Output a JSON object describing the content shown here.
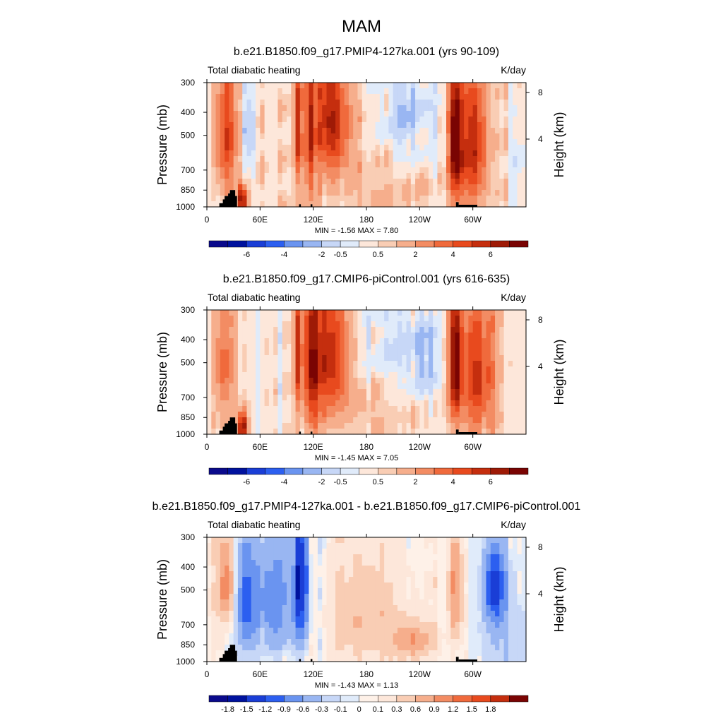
{
  "figure": {
    "title": "MAM"
  },
  "chart_data": [
    {
      "type": "heatmap",
      "title": "b.e21.B1850.f09_g17.PMIP4-127ka.001 (yrs 90-109)",
      "left_label": "Total diabatic heating",
      "right_label": "K/day",
      "ylabel": "Pressure (mb)",
      "ylabel_right": "Height (km)",
      "x_ticks": [
        "0",
        "60E",
        "120E",
        "180",
        "120W",
        "60W"
      ],
      "x_tick_values": [
        0,
        60,
        120,
        180,
        240,
        300
      ],
      "xlim": [
        0,
        360
      ],
      "y_ticks": [
        "300",
        "400",
        "500",
        "700",
        "850",
        "1000"
      ],
      "y_tick_values": [
        300,
        400,
        500,
        700,
        850,
        1000
      ],
      "ylim": [
        1000,
        300
      ],
      "height_ticks": [
        "8",
        "4"
      ],
      "height_tick_values": [
        8,
        4
      ],
      "stats": "MIN =  -1.56  MAX =  7.80",
      "colorbar_labels": [
        "-6",
        "-4",
        "-2",
        "-0.5",
        "0.5",
        "2",
        "4",
        "6"
      ],
      "features": [
        {
          "lon": 22,
          "p": 500,
          "value": 4.5,
          "sx": 9,
          "sy": 230
        },
        {
          "lon": 40,
          "p": 930,
          "value": 7.5,
          "sx": 4,
          "sy": 90
        },
        {
          "lon": 48,
          "p": 480,
          "value": -1.0,
          "sx": 5,
          "sy": 130
        },
        {
          "lon": 103,
          "p": 450,
          "value": 5.0,
          "sx": 3,
          "sy": 220
        },
        {
          "lon": 116,
          "p": 500,
          "value": 5.0,
          "sx": 3,
          "sy": 280
        },
        {
          "lon": 140,
          "p": 430,
          "value": 6.0,
          "sx": 15,
          "sy": 200
        },
        {
          "lon": 190,
          "p": 850,
          "value": 0.8,
          "sx": 55,
          "sy": 160
        },
        {
          "lon": 225,
          "p": 400,
          "value": -1.3,
          "sx": 22,
          "sy": 180
        },
        {
          "lon": 280,
          "p": 520,
          "value": 7.0,
          "sx": 5,
          "sy": 260
        },
        {
          "lon": 300,
          "p": 550,
          "value": 5.5,
          "sx": 12,
          "sy": 280
        },
        {
          "lon": 350,
          "p": 700,
          "value": -0.7,
          "sx": 6,
          "sy": 150
        }
      ],
      "values": [
        [
          0,
          0.4,
          0,
          0,
          1,
          1,
          0,
          0.6,
          -0.8,
          0.2,
          0,
          0.7,
          1.6,
          0.5,
          0.4,
          0,
          1.6,
          1,
          0.6,
          0.5,
          0.8,
          1.5,
          0.2,
          0.2,
          0.9,
          1.5,
          -0.4,
          0.2,
          0.4,
          0.3,
          -0.7,
          0.3,
          0.5,
          0.7,
          1.5,
          0.4,
          0.2,
          0.7,
          0.9,
          0.5,
          1.4,
          0.9,
          0.3,
          0.3,
          0.5,
          0.9,
          0.1,
          0.9,
          1,
          0.8,
          0.2,
          -0.3,
          0.8,
          0,
          1,
          0.6,
          0.7,
          1.1,
          0.6,
          0.3,
          0.7,
          -0.4,
          0.3,
          0,
          0.2,
          0.8,
          0.6,
          1.7,
          -0.1,
          0.3,
          0.7,
          0.5
        ]
      ]
    },
    {
      "type": "heatmap",
      "title": "b.e21.B1850.f09_g17.CMIP6-piControl.001 (yrs 616-635)",
      "left_label": "Total diabatic heating",
      "right_label": "K/day",
      "ylabel": "Pressure (mb)",
      "ylabel_right": "Height (km)",
      "x_ticks": [
        "0",
        "60E",
        "120E",
        "180",
        "120W",
        "60W"
      ],
      "x_tick_values": [
        0,
        60,
        120,
        180,
        240,
        300
      ],
      "xlim": [
        0,
        360
      ],
      "y_ticks": [
        "300",
        "400",
        "500",
        "700",
        "850",
        "1000"
      ],
      "y_tick_values": [
        300,
        400,
        500,
        700,
        850,
        1000
      ],
      "ylim": [
        1000,
        300
      ],
      "height_ticks": [
        "8",
        "4"
      ],
      "height_tick_values": [
        8,
        4
      ],
      "stats": "MIN =  -1.45  MAX =  7.05",
      "colorbar_labels": [
        "-6",
        "-4",
        "-2",
        "-0.5",
        "0.5",
        "2",
        "4",
        "6"
      ],
      "features": [
        {
          "lon": 20,
          "p": 500,
          "value": 3.0,
          "sx": 9,
          "sy": 230
        },
        {
          "lon": 40,
          "p": 930,
          "value": 7.0,
          "sx": 4,
          "sy": 90
        },
        {
          "lon": 103,
          "p": 450,
          "value": 5.0,
          "sx": 3,
          "sy": 220
        },
        {
          "lon": 118,
          "p": 500,
          "value": 5.5,
          "sx": 6,
          "sy": 280
        },
        {
          "lon": 140,
          "p": 470,
          "value": 5.5,
          "sx": 14,
          "sy": 230
        },
        {
          "lon": 200,
          "p": 420,
          "value": -0.8,
          "sx": 25,
          "sy": 200
        },
        {
          "lon": 245,
          "p": 480,
          "value": -1.4,
          "sx": 14,
          "sy": 160
        },
        {
          "lon": 180,
          "p": 780,
          "value": 0.8,
          "sx": 40,
          "sy": 150
        },
        {
          "lon": 280,
          "p": 480,
          "value": 7.0,
          "sx": 5,
          "sy": 260
        },
        {
          "lon": 305,
          "p": 570,
          "value": 5.0,
          "sx": 14,
          "sy": 280
        }
      ],
      "values": [
        [
          0,
          0.8,
          0.2,
          0.6,
          0.6,
          0.5,
          0.8,
          0,
          0.8,
          0.4,
          0.4,
          -0.4,
          0.1,
          0.6,
          0.4,
          1,
          -0.6,
          0.8,
          0.6,
          0.8,
          0.9,
          -0.2,
          0.5,
          0.5,
          1.3,
          0.5,
          1.4,
          0.3,
          0.1,
          0,
          0.3,
          0.2,
          0.4,
          0.7,
          0.5,
          0.7,
          0,
          1.5,
          1,
          0.9,
          0.3,
          0.5,
          0.5,
          0.2,
          0.6,
          0.3,
          1.4,
          0.6,
          0.4,
          1,
          -0.1,
          0.9,
          0.5,
          0.6,
          0.4,
          0.1,
          0.6,
          0.3,
          0.2,
          0.6,
          0.8,
          0.8,
          -0.8,
          0.8,
          1.6,
          0.5,
          0.6,
          0.1,
          0.4,
          0.3,
          0.2,
          0.1
        ]
      ]
    },
    {
      "type": "heatmap",
      "title": "b.e21.B1850.f09_g17.PMIP4-127ka.001 - b.e21.B1850.f09_g17.CMIP6-piControl.001",
      "left_label": "Total diabatic heating",
      "right_label": "K/day",
      "ylabel": "Pressure (mb)",
      "ylabel_right": "Height (km)",
      "x_ticks": [
        "0",
        "60E",
        "120E",
        "180",
        "120W",
        "60W"
      ],
      "x_tick_values": [
        0,
        60,
        120,
        180,
        240,
        300
      ],
      "xlim": [
        0,
        360
      ],
      "y_ticks": [
        "300",
        "400",
        "500",
        "700",
        "850",
        "1000"
      ],
      "y_tick_values": [
        300,
        400,
        500,
        700,
        850,
        1000
      ],
      "ylim": [
        1000,
        300
      ],
      "height_ticks": [
        "8",
        "4"
      ],
      "height_tick_values": [
        8,
        4
      ],
      "stats": "MIN =  -1.43  MAX =  1.13",
      "colorbar_labels": [
        "-1.8",
        "-1.5",
        "-1.2",
        "-0.9",
        "-0.6",
        "-0.3",
        "-0.1",
        "0",
        "0.1",
        "0.3",
        "0.6",
        "0.9",
        "1.2",
        "1.5",
        "1.8"
      ],
      "features": [
        {
          "lon": 22,
          "p": 470,
          "value": 1.1,
          "sx": 8,
          "sy": 150
        },
        {
          "lon": 42,
          "p": 550,
          "value": -0.8,
          "sx": 8,
          "sy": 220
        },
        {
          "lon": 75,
          "p": 560,
          "value": -0.9,
          "sx": 22,
          "sy": 220
        },
        {
          "lon": 103,
          "p": 450,
          "value": -1.2,
          "sx": 3,
          "sy": 240
        },
        {
          "lon": 110,
          "p": 450,
          "value": -1.2,
          "sx": 3,
          "sy": 240
        },
        {
          "lon": 180,
          "p": 650,
          "value": 0.45,
          "sx": 35,
          "sy": 280
        },
        {
          "lon": 232,
          "p": 820,
          "value": 0.85,
          "sx": 16,
          "sy": 100
        },
        {
          "lon": 280,
          "p": 500,
          "value": 1.0,
          "sx": 5,
          "sy": 200
        },
        {
          "lon": 325,
          "p": 480,
          "value": -1.4,
          "sx": 9,
          "sy": 130
        },
        {
          "lon": 335,
          "p": 800,
          "value": -0.35,
          "sx": 18,
          "sy": 200
        }
      ],
      "values": [
        [
          0.1,
          0.3,
          0.1,
          0.1,
          0,
          0,
          0,
          0.1,
          0,
          0,
          0,
          0,
          0.3,
          0.1,
          0.1,
          0,
          0,
          0.2,
          0.1,
          0,
          0,
          0,
          0.1,
          0.1,
          0,
          -0.2,
          -0.1,
          0,
          0,
          0.2,
          0.2,
          0,
          0,
          0.2,
          0.2,
          0,
          0,
          0,
          0,
          0.2,
          0,
          0.1,
          0,
          0,
          0,
          -0.1,
          0,
          0,
          0,
          0.1,
          0.1,
          0.3,
          0,
          0,
          0,
          0.1,
          0,
          0.1,
          0.2,
          0,
          0,
          0.1,
          0,
          0,
          0,
          0,
          0.1,
          -0.2,
          0.2,
          0,
          0.1,
          0
        ]
      ]
    }
  ],
  "colors": {
    "full_palette": [
      "#0a0a8c",
      "#00129e",
      "#1a3ed6",
      "#2c5ff0",
      "#6a94f0",
      "#99b6f2",
      "#c7d7f7",
      "#e0ebfa",
      "#fde7da",
      "#f9cdb4",
      "#f6ae8c",
      "#f38c63",
      "#f06a3c",
      "#e84a1e",
      "#c52e0e",
      "#9e1a06",
      "#7a0403"
    ],
    "diff_palette": [
      "#0a0a8c",
      "#00129e",
      "#1a3ed6",
      "#2c5ff0",
      "#6a94f0",
      "#99b6f2",
      "#c7d7f7",
      "#e0ebfa",
      "#fef1e8",
      "#fde7da",
      "#f9cdb4",
      "#f6ae8c",
      "#f38c63",
      "#f06a3c",
      "#e84a1e",
      "#c52e0e",
      "#7a0403"
    ],
    "topography": "#000000"
  }
}
